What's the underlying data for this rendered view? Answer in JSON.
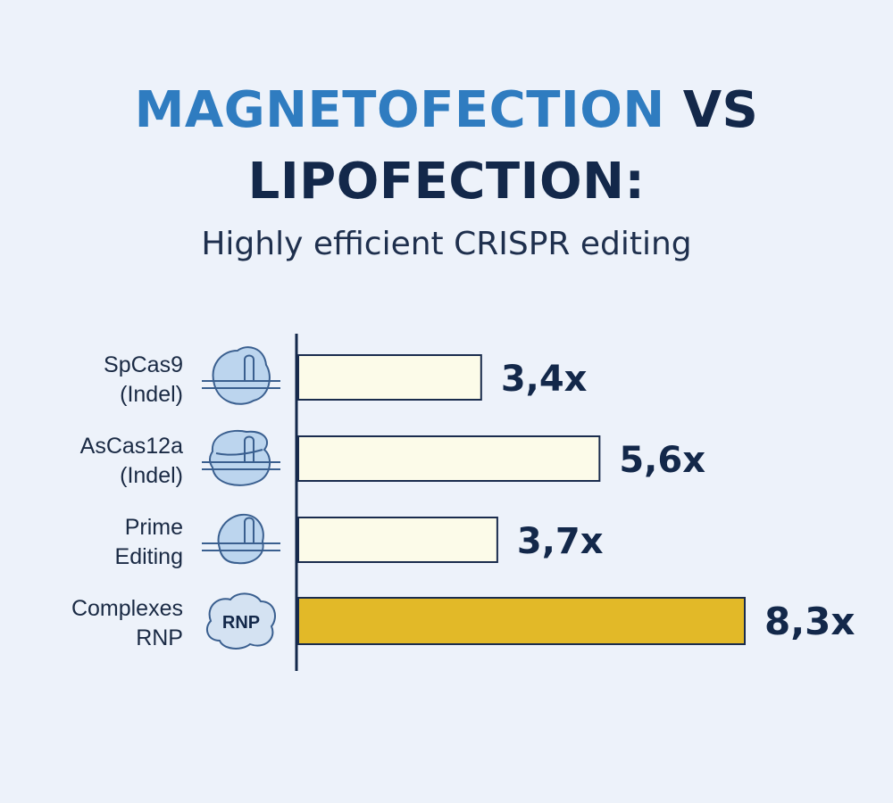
{
  "title": {
    "highlight": "MAGNETOFECTION",
    "line1_rest": " VS",
    "line2": "LIPOFECTION:"
  },
  "subtitle": "Highly efficient CRISPR editing",
  "colors": {
    "title_highlight": "#2f7cc0",
    "title_dark": "#13284a",
    "bar_light": "#fcfbe9",
    "bar_highlight": "#e2b928",
    "bar_stroke": "#1a2c4d",
    "icon_fill": "#bcd5ee",
    "icon_stroke": "#3a5f8f",
    "background": "#edf2fa"
  },
  "chart_data": {
    "type": "bar",
    "orientation": "horizontal",
    "categories": [
      [
        "SpCas9",
        "(Indel)"
      ],
      [
        "AsCas12a",
        "(Indel)"
      ],
      [
        "Prime",
        "Editing"
      ],
      [
        "Complexes",
        "RNP"
      ]
    ],
    "values": [
      3.4,
      5.6,
      3.7,
      8.3
    ],
    "value_labels": [
      "3,4x",
      "5,6x",
      "3,7x",
      "8,3x"
    ],
    "highlight_index": 3,
    "icons": [
      "cas9-protein-icon",
      "cas12a-protein-icon",
      "prime-editor-icon",
      "rnp-complex-icon"
    ],
    "icon_text": [
      "",
      "",
      "",
      "RNP"
    ],
    "xlim": [
      0,
      8.3
    ],
    "grid": false,
    "legend": "none"
  }
}
